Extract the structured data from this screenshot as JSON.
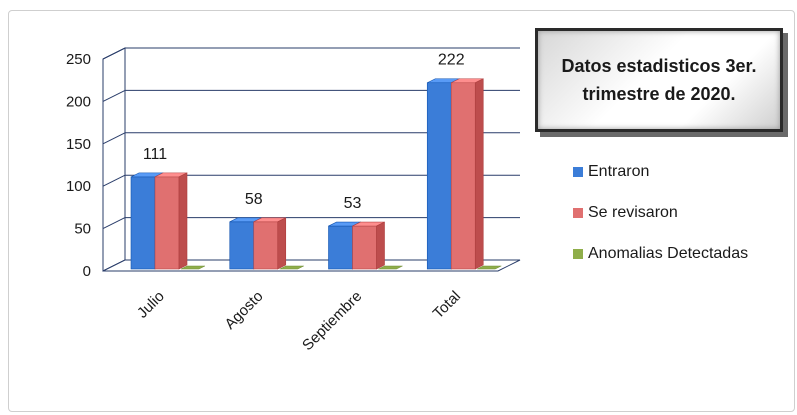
{
  "chart_data": {
    "type": "bar",
    "title": "Datos estadisticos 3er. trimestre de 2020.",
    "categories": [
      "Julio",
      "Agosto",
      "Septiembre",
      "Total"
    ],
    "series": [
      {
        "name": "Entraron",
        "values": [
          111,
          58,
          53,
          222
        ],
        "color": "#3b7dd8"
      },
      {
        "name": "Se revisaron",
        "values": [
          111,
          58,
          53,
          222
        ],
        "color": "#e07070"
      },
      {
        "name": "Anomalias Detectadas",
        "values": [
          0,
          0,
          0,
          0
        ],
        "color": "#8fae4a"
      }
    ],
    "data_labels": [
      "111",
      "58",
      "53",
      "222"
    ],
    "y_ticks": [
      "0",
      "50",
      "100",
      "150",
      "200",
      "250"
    ],
    "ylim": [
      0,
      250
    ],
    "grid": true,
    "legend_position": "right"
  }
}
